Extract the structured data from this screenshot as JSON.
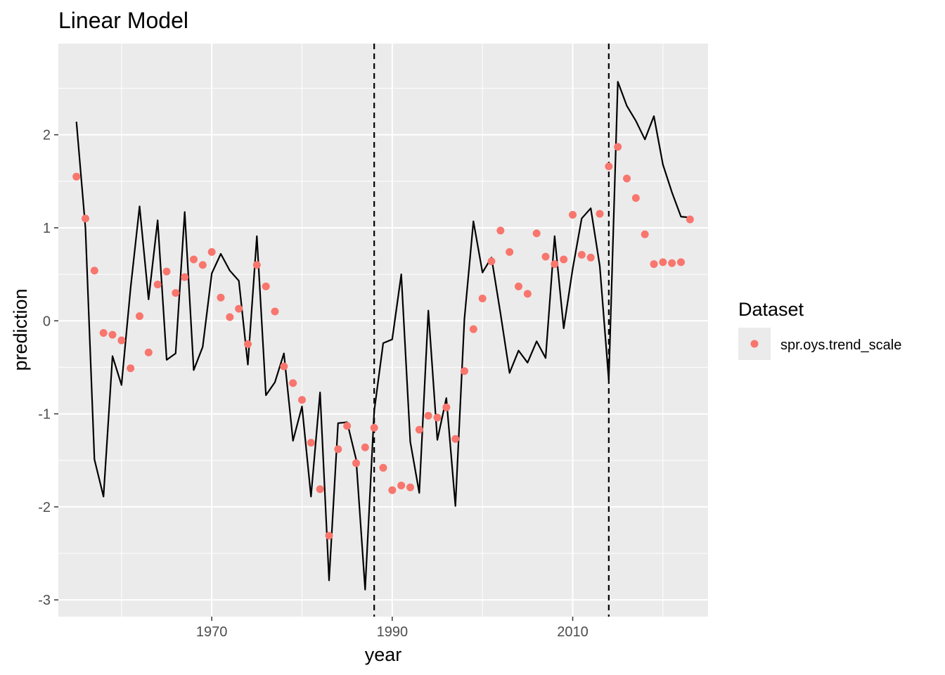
{
  "chart_data": {
    "type": "line",
    "title": "Linear Model",
    "xlabel": "year",
    "ylabel": "prediction",
    "xlim": [
      1953,
      2025
    ],
    "ylim": [
      -3.18,
      2.98
    ],
    "x_ticks": [
      1970,
      1990,
      2010
    ],
    "x_tick_labels": [
      "1970",
      "1990",
      "2010"
    ],
    "x_minor_ticks": [
      1960,
      1980,
      2000,
      2020
    ],
    "y_ticks": [
      -3,
      -2,
      -1,
      0,
      1,
      2
    ],
    "y_tick_labels": [
      "-3",
      "-2",
      "-1",
      "0",
      "1",
      "2"
    ],
    "y_minor_ticks": [
      -2.5,
      -1.5,
      -0.5,
      0.5,
      1.5,
      2.5
    ],
    "grid": true,
    "legend": {
      "title": "Dataset",
      "position": "right",
      "entries": [
        {
          "label": "spr.oys.trend_scale",
          "color": "#F8766D"
        }
      ]
    },
    "vlines": [
      1988,
      2014
    ],
    "line_series": {
      "color": "#000000",
      "x": [
        1955,
        1956,
        1957,
        1958,
        1959,
        1960,
        1961,
        1962,
        1963,
        1964,
        1965,
        1966,
        1967,
        1968,
        1969,
        1970,
        1971,
        1972,
        1973,
        1974,
        1975,
        1976,
        1977,
        1978,
        1979,
        1980,
        1981,
        1982,
        1983,
        1984,
        1985,
        1986,
        1987,
        1988,
        1989,
        1990,
        1991,
        1992,
        1993,
        1994,
        1995,
        1996,
        1997,
        1998,
        1999,
        2000,
        2001,
        2002,
        2003,
        2004,
        2005,
        2006,
        2007,
        2008,
        2009,
        2010,
        2011,
        2012,
        2013,
        2014,
        2015,
        2016,
        2017,
        2018,
        2019,
        2020,
        2021,
        2022,
        2023
      ],
      "y": [
        2.14,
        1.0,
        -1.49,
        -1.89,
        -0.38,
        -0.69,
        0.35,
        1.23,
        0.23,
        1.08,
        -0.42,
        -0.35,
        1.17,
        -0.53,
        -0.28,
        0.51,
        0.72,
        0.54,
        0.43,
        -0.47,
        0.91,
        -0.8,
        -0.66,
        -0.35,
        -1.29,
        -0.92,
        -1.89,
        -0.77,
        -2.79,
        -1.1,
        -1.09,
        -1.49,
        -2.89,
        -0.97,
        -0.24,
        -0.2,
        0.5,
        -1.3,
        -1.85,
        0.11,
        -1.28,
        -0.83,
        -1.99,
        0.02,
        1.07,
        0.52,
        0.68,
        0.08,
        -0.56,
        -0.32,
        -0.45,
        -0.22,
        -0.4,
        0.91,
        -0.08,
        0.56,
        1.1,
        1.21,
        0.59,
        -0.64,
        2.57,
        2.31,
        2.15,
        1.95,
        2.2,
        1.68,
        1.38,
        1.12,
        1.11
      ]
    },
    "point_series": {
      "name": "spr.oys.trend_scale",
      "color": "#F8766D",
      "x": [
        1955,
        1956,
        1957,
        1958,
        1959,
        1960,
        1961,
        1962,
        1963,
        1964,
        1965,
        1966,
        1967,
        1968,
        1969,
        1970,
        1971,
        1972,
        1973,
        1974,
        1975,
        1976,
        1977,
        1978,
        1979,
        1980,
        1981,
        1982,
        1983,
        1984,
        1985,
        1986,
        1987,
        1988,
        1989,
        1990,
        1991,
        1992,
        1993,
        1994,
        1995,
        1996,
        1997,
        1998,
        1999,
        2000,
        2001,
        2002,
        2003,
        2004,
        2005,
        2006,
        2007,
        2008,
        2009,
        2010,
        2011,
        2012,
        2013,
        2014,
        2015,
        2016,
        2017,
        2018,
        2019,
        2020,
        2021,
        2022,
        2023
      ],
      "y": [
        1.55,
        1.1,
        0.54,
        -0.13,
        -0.15,
        -0.21,
        -0.51,
        0.05,
        -0.34,
        0.39,
        0.53,
        0.3,
        0.47,
        0.66,
        0.6,
        0.74,
        0.25,
        0.04,
        0.13,
        -0.25,
        0.6,
        0.37,
        0.1,
        -0.49,
        -0.67,
        -0.85,
        -1.31,
        -1.81,
        -2.31,
        -1.38,
        -1.13,
        -1.53,
        -1.36,
        -1.15,
        -1.58,
        -1.82,
        -1.77,
        -1.79,
        -1.17,
        -1.02,
        -1.04,
        -0.93,
        -1.27,
        -0.54,
        -0.09,
        0.24,
        0.64,
        0.97,
        0.74,
        0.37,
        0.29,
        0.94,
        0.69,
        0.61,
        0.66,
        1.14,
        0.71,
        0.68,
        1.15,
        1.66,
        1.87,
        1.53,
        1.32,
        0.93,
        0.61,
        0.63,
        0.62,
        0.63,
        1.09
      ]
    }
  }
}
